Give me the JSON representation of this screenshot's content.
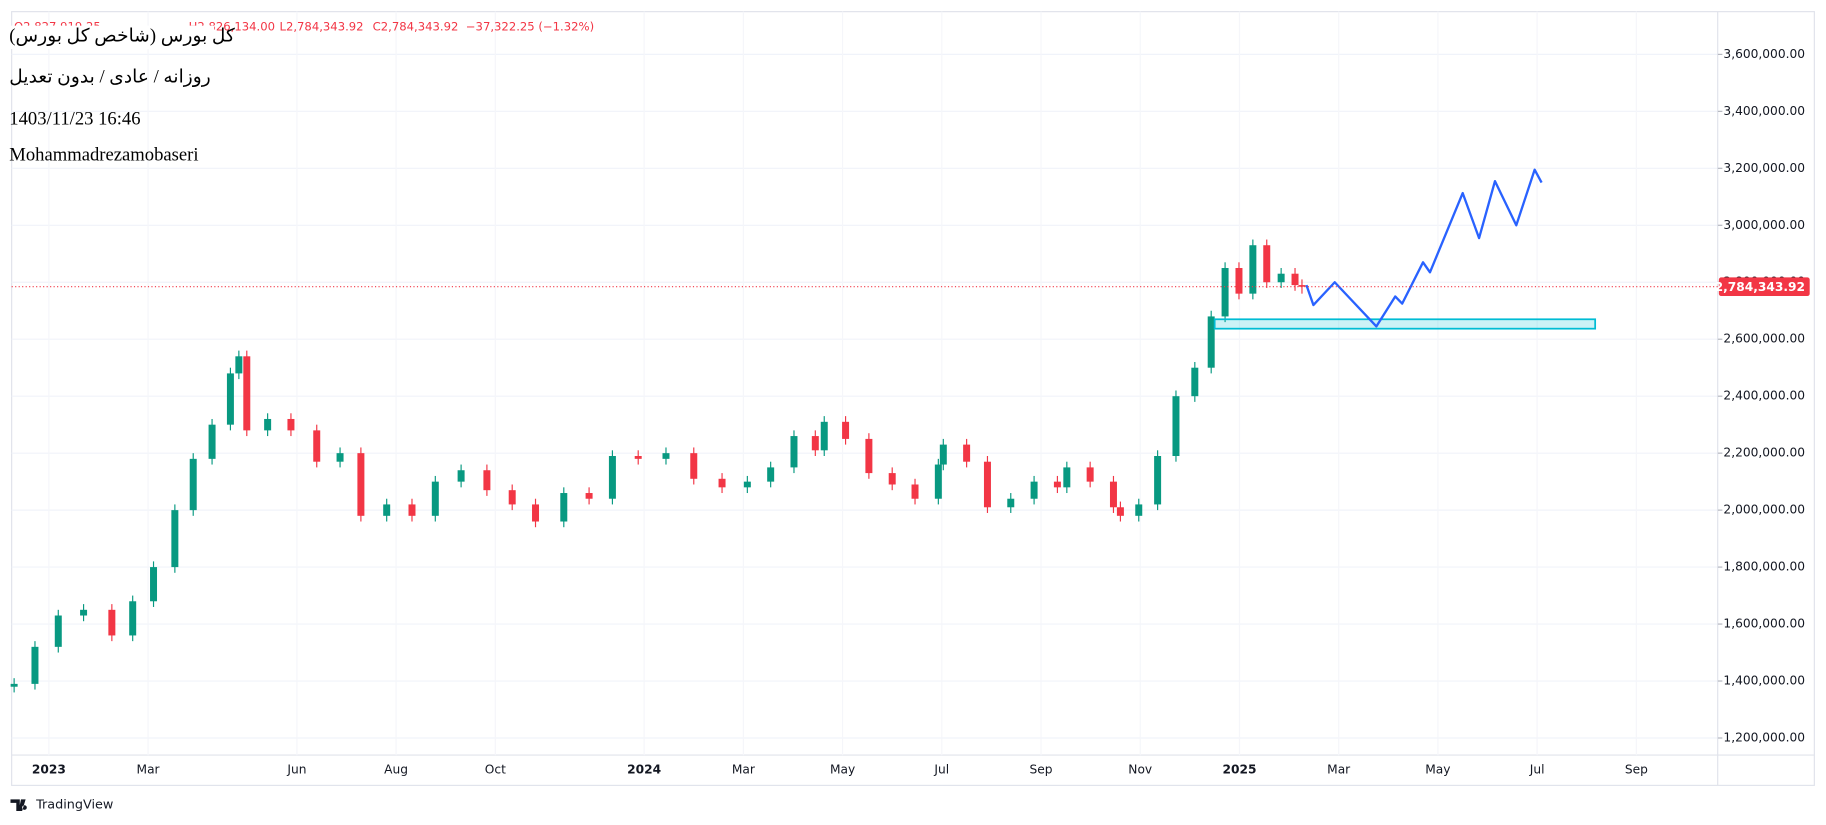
{
  "chart_data": {
    "type": "candlestick",
    "title": "كل بورس (شاخص كل بورس)",
    "subtitle": "روزانه / عادی / بدون تعدیل",
    "timestamp": "1403/11/23 16:46",
    "author": "Mohammadrezamobaseri",
    "ohlc_text": [
      "O2,827,919.25",
      "H2,826,134.00",
      "L2,784,343.92",
      "C2,784,343.92",
      "−37,322.25 (−1.32%)"
    ],
    "watermark": "TradingView",
    "up_color": "#089981",
    "down_color": "#f23645",
    "grid": true,
    "xlim": [
      -0.75,
      33.64
    ],
    "ylim": [
      1140000,
      3750000
    ],
    "xticks": [
      {
        "value": 0,
        "label": "2023"
      },
      {
        "value": 2,
        "label": "Mar"
      },
      {
        "value": 5,
        "label": "Jun"
      },
      {
        "value": 7,
        "label": "Aug"
      },
      {
        "value": 9,
        "label": "Oct"
      },
      {
        "value": 12,
        "label": "2024"
      },
      {
        "value": 14,
        "label": "Mar"
      },
      {
        "value": 16,
        "label": "May"
      },
      {
        "value": 18,
        "label": "Jul"
      },
      {
        "value": 20,
        "label": "Sep"
      },
      {
        "value": 22,
        "label": "Nov"
      },
      {
        "value": 24,
        "label": "2025"
      },
      {
        "value": 26,
        "label": "Mar"
      },
      {
        "value": 28,
        "label": "May"
      },
      {
        "value": 30,
        "label": "Jul"
      },
      {
        "value": 32,
        "label": "Sep"
      }
    ],
    "yticks": [
      {
        "value": 1200000,
        "label": "1,200,000.00"
      },
      {
        "value": 1400000,
        "label": "1,400,000.00"
      },
      {
        "value": 1600000,
        "label": "1,600,000.00"
      },
      {
        "value": 1800000,
        "label": "1,800,000.00"
      },
      {
        "value": 2000000,
        "label": "2,000,000.00"
      },
      {
        "value": 2200000,
        "label": "2,200,000.00"
      },
      {
        "value": 2400000,
        "label": "2,400,000.00"
      },
      {
        "value": 2600000,
        "label": "2,600,000.00"
      },
      {
        "value": 2800000,
        "label": "2,800,000.00"
      },
      {
        "value": 3000000,
        "label": "3,000,000.00"
      },
      {
        "value": 3200000,
        "label": "3,200,000.00"
      },
      {
        "value": 3400000,
        "label": "3,400,000.00"
      },
      {
        "value": 3600000,
        "label": "3,600,000.00"
      }
    ],
    "x": [
      -0.7,
      -0.28,
      0.19,
      0.7,
      1.27,
      1.69,
      2.11,
      2.54,
      2.91,
      3.29,
      3.66,
      3.83,
      3.99,
      4.41,
      4.88,
      5.4,
      5.87,
      6.29,
      6.81,
      7.32,
      7.79,
      8.31,
      8.83,
      9.34,
      9.81,
      10.38,
      10.89,
      11.36,
      11.88,
      12.44,
      13.0,
      13.57,
      14.08,
      14.55,
      15.02,
      15.45,
      15.63,
      16.06,
      16.53,
      17.0,
      17.46,
      17.93,
      18.03,
      18.5,
      18.92,
      19.39,
      19.86,
      20.33,
      20.52,
      20.99,
      21.46,
      21.6,
      21.97,
      22.35,
      22.72,
      23.1,
      23.43,
      23.71,
      23.99,
      24.27,
      24.55,
      24.84,
      25.12,
      25.26
    ],
    "open": [
      1380000,
      1390000,
      1520000,
      1630000,
      1650000,
      1560000,
      1680000,
      1800000,
      2000000,
      2180000,
      2300000,
      2480000,
      2540000,
      2280000,
      2320000,
      2280000,
      2170000,
      2200000,
      1980000,
      2020000,
      1980000,
      2100000,
      2140000,
      2070000,
      2020000,
      1960000,
      2060000,
      2040000,
      2190000,
      2180000,
      2200000,
      2110000,
      2080000,
      2100000,
      2150000,
      2260000,
      2210000,
      2310000,
      2250000,
      2130000,
      2090000,
      2040000,
      2160000,
      2230000,
      2170000,
      2010000,
      2040000,
      2100000,
      2080000,
      2150000,
      2100000,
      2010000,
      1980000,
      2020000,
      2190000,
      2400000,
      2500000,
      2680000,
      2850000,
      2760000,
      2930000,
      2800000,
      2830000,
      2790000
    ],
    "high": [
      1410000,
      1540000,
      1650000,
      1670000,
      1670000,
      1700000,
      1820000,
      2020000,
      2200000,
      2320000,
      2500000,
      2560000,
      2560000,
      2340000,
      2340000,
      2300000,
      2220000,
      2220000,
      2040000,
      2040000,
      2120000,
      2160000,
      2160000,
      2090000,
      2040000,
      2080000,
      2080000,
      2210000,
      2210000,
      2220000,
      2220000,
      2130000,
      2120000,
      2170000,
      2280000,
      2280000,
      2330000,
      2330000,
      2270000,
      2150000,
      2110000,
      2180000,
      2250000,
      2250000,
      2190000,
      2060000,
      2120000,
      2120000,
      2170000,
      2170000,
      2120000,
      2030000,
      2040000,
      2210000,
      2420000,
      2520000,
      2700000,
      2870000,
      2870000,
      2950000,
      2950000,
      2850000,
      2850000,
      2810000
    ],
    "low": [
      1360000,
      1370000,
      1500000,
      1610000,
      1540000,
      1540000,
      1660000,
      1780000,
      1980000,
      2160000,
      2280000,
      2460000,
      2260000,
      2260000,
      2260000,
      2150000,
      2150000,
      1960000,
      1960000,
      1960000,
      1960000,
      2080000,
      2050000,
      2000000,
      1940000,
      1940000,
      2020000,
      2020000,
      2160000,
      2160000,
      2090000,
      2060000,
      2060000,
      2080000,
      2130000,
      2190000,
      2190000,
      2230000,
      2110000,
      2070000,
      2020000,
      2020000,
      2140000,
      2150000,
      1990000,
      1990000,
      2020000,
      2060000,
      2060000,
      2080000,
      1990000,
      1960000,
      1960000,
      2000000,
      2170000,
      2380000,
      2480000,
      2660000,
      2740000,
      2740000,
      2780000,
      2780000,
      2770000,
      2760000
    ],
    "close": [
      1390000,
      1520000,
      1630000,
      1650000,
      1560000,
      1680000,
      1800000,
      2000000,
      2180000,
      2300000,
      2480000,
      2540000,
      2280000,
      2320000,
      2280000,
      2170000,
      2200000,
      1980000,
      2020000,
      1980000,
      2100000,
      2140000,
      2070000,
      2020000,
      1960000,
      2060000,
      2040000,
      2190000,
      2180000,
      2200000,
      2110000,
      2080000,
      2100000,
      2150000,
      2260000,
      2210000,
      2310000,
      2250000,
      2130000,
      2090000,
      2040000,
      2160000,
      2230000,
      2170000,
      2010000,
      2040000,
      2100000,
      2080000,
      2150000,
      2100000,
      2010000,
      1980000,
      2020000,
      2190000,
      2400000,
      2500000,
      2680000,
      2850000,
      2760000,
      2930000,
      2800000,
      2830000,
      2790000,
      2784343.92
    ],
    "last_price": {
      "value": 2784343.92,
      "label": "2,784,343.92",
      "color": "#f23645"
    },
    "projection": {
      "color": "#2962ff",
      "x": [
        25.35,
        25.49,
        25.92,
        26.76,
        27.14,
        27.28,
        27.7,
        27.84,
        28.5,
        28.83,
        29.15,
        29.58,
        29.95,
        30.09
      ],
      "values": [
        2790000,
        2720000,
        2800000,
        2645000,
        2750000,
        2725000,
        2870000,
        2835000,
        3113000,
        2955000,
        3155000,
        3000000,
        3195000,
        3150000
      ]
    },
    "zone": {
      "color": "#00bcd4",
      "x": [
        23.5,
        31.17
      ],
      "y": [
        2637000,
        2670000
      ]
    }
  }
}
